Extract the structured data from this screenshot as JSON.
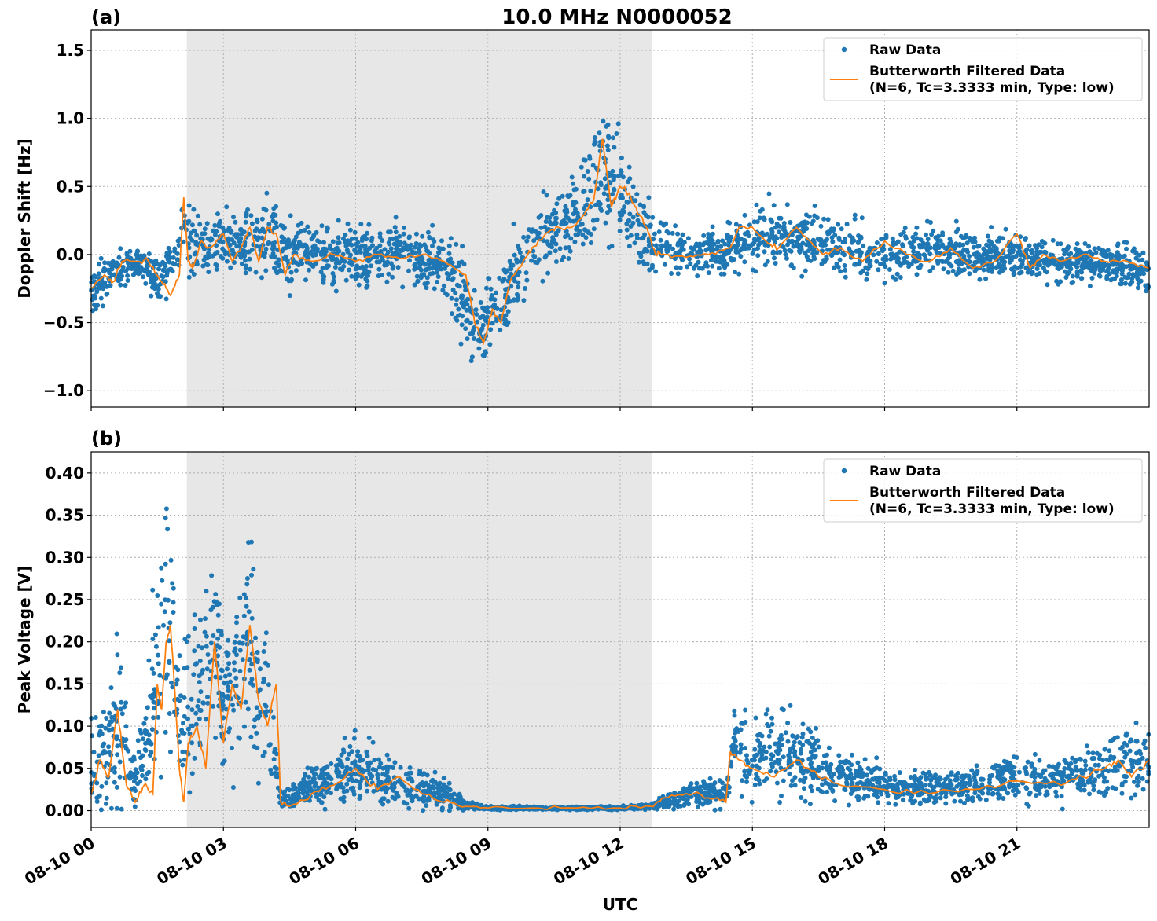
{
  "title": "10.0 MHz N0000052",
  "colors": {
    "raw": "#1f77b4",
    "filtered": "#ff7f0e",
    "shade": "#e7e7e7",
    "grid": "#b0b0b0"
  },
  "xlabel": "UTC",
  "xticks": [
    "08-10 00",
    "08-10 03",
    "08-10 06",
    "08-10 09",
    "08-10 12",
    "08-10 15",
    "08-10 18",
    "08-10 21"
  ],
  "legend": {
    "raw": "Raw Data",
    "filtered_line1": "Butterworth Filtered Data",
    "filtered_line2": "(N=6, Tc=3.3333 min, Type: low)"
  },
  "chart_data": [
    {
      "type": "scatter",
      "panel": "(a)",
      "ylabel": "Doppler Shift [Hz]",
      "x_unit": "hours UTC on 08-10",
      "xlim": [
        0,
        24
      ],
      "ylim": [
        -1.12,
        1.65
      ],
      "yticks": [
        "1.5",
        "1.0",
        "0.5",
        "0.0",
        "−0.5",
        "−1.0"
      ],
      "ytick_values": [
        1.5,
        1.0,
        0.5,
        0.0,
        -0.5,
        -1.0
      ],
      "grid": true,
      "legend_position": "top-right",
      "shaded_interval_hours": [
        2.17,
        12.73
      ],
      "series": [
        {
          "name": "Butterworth Filtered Data",
          "x": [
            0,
            0.3,
            0.5,
            0.7,
            1.0,
            1.3,
            1.6,
            1.8,
            2.0,
            2.1,
            2.2,
            2.3,
            2.5,
            2.7,
            3.0,
            3.2,
            3.4,
            3.6,
            3.8,
            4.0,
            4.2,
            4.4,
            4.6,
            5.0,
            5.5,
            6.0,
            6.5,
            7.0,
            7.5,
            8.0,
            8.5,
            8.7,
            8.9,
            9.1,
            9.3,
            9.5,
            9.8,
            10.0,
            10.3,
            10.6,
            10.9,
            11.2,
            11.4,
            11.6,
            11.8,
            12.0,
            12.2,
            12.4,
            12.6,
            12.8,
            13.0,
            13.5,
            14.0,
            14.5,
            14.7,
            15.0,
            15.3,
            15.6,
            16.0,
            16.3,
            16.6,
            17.0,
            17.5,
            18.0,
            18.5,
            19.0,
            19.5,
            20.0,
            20.5,
            21.0,
            21.3,
            21.6,
            22.0,
            22.5,
            23.0,
            23.5,
            24.0
          ],
          "y": [
            -0.25,
            -0.15,
            -0.2,
            -0.05,
            -0.05,
            -0.05,
            -0.2,
            -0.3,
            -0.15,
            0.42,
            -0.05,
            -0.1,
            0.1,
            0.05,
            0.15,
            -0.05,
            0.05,
            0.2,
            -0.05,
            0.2,
            0.15,
            -0.15,
            0.0,
            -0.05,
            0.0,
            -0.05,
            0.0,
            -0.03,
            0.0,
            -0.05,
            -0.15,
            -0.5,
            -0.65,
            -0.4,
            -0.5,
            -0.2,
            -0.05,
            0.05,
            0.15,
            0.2,
            0.2,
            0.3,
            0.4,
            0.85,
            0.35,
            0.5,
            0.45,
            0.3,
            0.2,
            0.0,
            0.0,
            -0.02,
            0.0,
            0.05,
            0.2,
            0.2,
            0.1,
            0.05,
            0.2,
            0.1,
            0.0,
            0.05,
            -0.05,
            0.1,
            0.0,
            -0.05,
            0.05,
            -0.1,
            -0.05,
            0.15,
            -0.1,
            0.0,
            -0.05,
            0.0,
            -0.05,
            -0.05,
            -0.1
          ]
        },
        {
          "name": "Raw Data",
          "x": [
            0,
            0.5,
            1.0,
            1.6,
            2.1,
            2.5,
            3.0,
            3.5,
            4.0,
            4.5,
            5.0,
            6.0,
            7.0,
            8.0,
            8.8,
            9.3,
            10.0,
            10.6,
            11.2,
            11.6,
            12.0,
            12.7,
            13.5,
            14.5,
            15.2,
            16.0,
            17.0,
            18.0,
            19.0,
            20.0,
            21.0,
            22.0,
            23.0,
            24.0
          ],
          "y": [
            -0.25,
            -0.15,
            -0.05,
            -0.2,
            0.15,
            0.05,
            0.1,
            0.05,
            0.1,
            0.0,
            0.0,
            0.0,
            0.0,
            -0.05,
            -0.55,
            -0.3,
            0.05,
            0.2,
            0.3,
            0.65,
            0.4,
            0.1,
            0.0,
            0.05,
            0.15,
            0.1,
            0.05,
            0.0,
            0.05,
            0.0,
            0.0,
            -0.05,
            -0.05,
            -0.15
          ],
          "spread": [
            0.18,
            0.15,
            0.12,
            0.18,
            0.3,
            0.2,
            0.25,
            0.28,
            0.3,
            0.25,
            0.22,
            0.22,
            0.2,
            0.25,
            0.35,
            0.35,
            0.3,
            0.3,
            0.35,
            0.5,
            0.4,
            0.25,
            0.15,
            0.2,
            0.25,
            0.22,
            0.2,
            0.18,
            0.18,
            0.18,
            0.17,
            0.16,
            0.15,
            0.2
          ]
        }
      ]
    },
    {
      "type": "scatter",
      "panel": "(b)",
      "ylabel": "Peak Voltage [V]",
      "x_unit": "hours UTC on 08-10",
      "xlim": [
        0,
        24
      ],
      "ylim": [
        -0.02,
        0.425
      ],
      "yticks": [
        "0.40",
        "0.35",
        "0.30",
        "0.25",
        "0.20",
        "0.15",
        "0.10",
        "0.05",
        "0.00"
      ],
      "ytick_values": [
        0.4,
        0.35,
        0.3,
        0.25,
        0.2,
        0.15,
        0.1,
        0.05,
        0.0
      ],
      "grid": true,
      "legend_position": "top-right",
      "shaded_interval_hours": [
        2.17,
        12.73
      ],
      "series": [
        {
          "name": "Butterworth Filtered Data",
          "x": [
            0,
            0.2,
            0.4,
            0.6,
            0.8,
            1.0,
            1.2,
            1.4,
            1.5,
            1.6,
            1.7,
            1.8,
            1.9,
            2.0,
            2.1,
            2.2,
            2.4,
            2.6,
            2.8,
            3.0,
            3.2,
            3.4,
            3.6,
            3.8,
            4.0,
            4.2,
            4.3,
            4.5,
            5.0,
            5.5,
            6.0,
            6.5,
            7.0,
            7.5,
            8.0,
            8.5,
            9.0,
            10.0,
            11.0,
            12.0,
            12.7,
            13.0,
            13.5,
            14.0,
            14.4,
            14.5,
            14.7,
            15.0,
            15.5,
            16.0,
            16.5,
            17.0,
            18.0,
            19.0,
            20.0,
            21.0,
            22.0,
            22.5,
            23.0,
            23.3,
            23.6,
            24.0
          ],
          "y": [
            0.02,
            0.06,
            0.04,
            0.12,
            0.03,
            0.01,
            0.03,
            0.02,
            0.15,
            0.12,
            0.2,
            0.22,
            0.14,
            0.05,
            0.01,
            0.08,
            0.1,
            0.05,
            0.2,
            0.08,
            0.15,
            0.12,
            0.22,
            0.13,
            0.1,
            0.15,
            0.01,
            0.005,
            0.02,
            0.03,
            0.05,
            0.025,
            0.04,
            0.02,
            0.01,
            0.005,
            0.003,
            0.003,
            0.003,
            0.003,
            0.005,
            0.015,
            0.02,
            0.015,
            0.01,
            0.07,
            0.06,
            0.05,
            0.04,
            0.06,
            0.04,
            0.03,
            0.025,
            0.02,
            0.025,
            0.035,
            0.03,
            0.04,
            0.05,
            0.06,
            0.04,
            0.06
          ]
        },
        {
          "name": "Raw Data",
          "x": [
            0,
            0.4,
            0.6,
            1.0,
            1.5,
            1.7,
            1.8,
            2.0,
            2.5,
            2.8,
            3.0,
            3.3,
            3.6,
            4.0,
            4.3,
            5.0,
            6.0,
            7.0,
            8.0,
            8.5,
            9.0,
            10.0,
            11.0,
            12.0,
            12.7,
            13.5,
            14.4,
            14.6,
            15.0,
            16.0,
            17.0,
            18.0,
            19.0,
            20.0,
            21.0,
            22.0,
            23.0,
            23.5,
            24.0
          ],
          "y": [
            0.06,
            0.08,
            0.1,
            0.03,
            0.15,
            0.25,
            0.2,
            0.12,
            0.15,
            0.2,
            0.12,
            0.15,
            0.2,
            0.12,
            0.01,
            0.03,
            0.05,
            0.03,
            0.02,
            0.007,
            0.003,
            0.003,
            0.003,
            0.003,
            0.005,
            0.02,
            0.02,
            0.08,
            0.06,
            0.07,
            0.04,
            0.03,
            0.025,
            0.03,
            0.04,
            0.035,
            0.05,
            0.06,
            0.05
          ],
          "spread": [
            0.06,
            0.08,
            0.1,
            0.03,
            0.12,
            0.15,
            0.12,
            0.1,
            0.1,
            0.1,
            0.08,
            0.1,
            0.12,
            0.08,
            0.01,
            0.025,
            0.04,
            0.03,
            0.02,
            0.005,
            0.002,
            0.002,
            0.002,
            0.002,
            0.004,
            0.015,
            0.02,
            0.05,
            0.05,
            0.06,
            0.03,
            0.02,
            0.02,
            0.025,
            0.03,
            0.03,
            0.04,
            0.05,
            0.04
          ]
        }
      ]
    }
  ]
}
